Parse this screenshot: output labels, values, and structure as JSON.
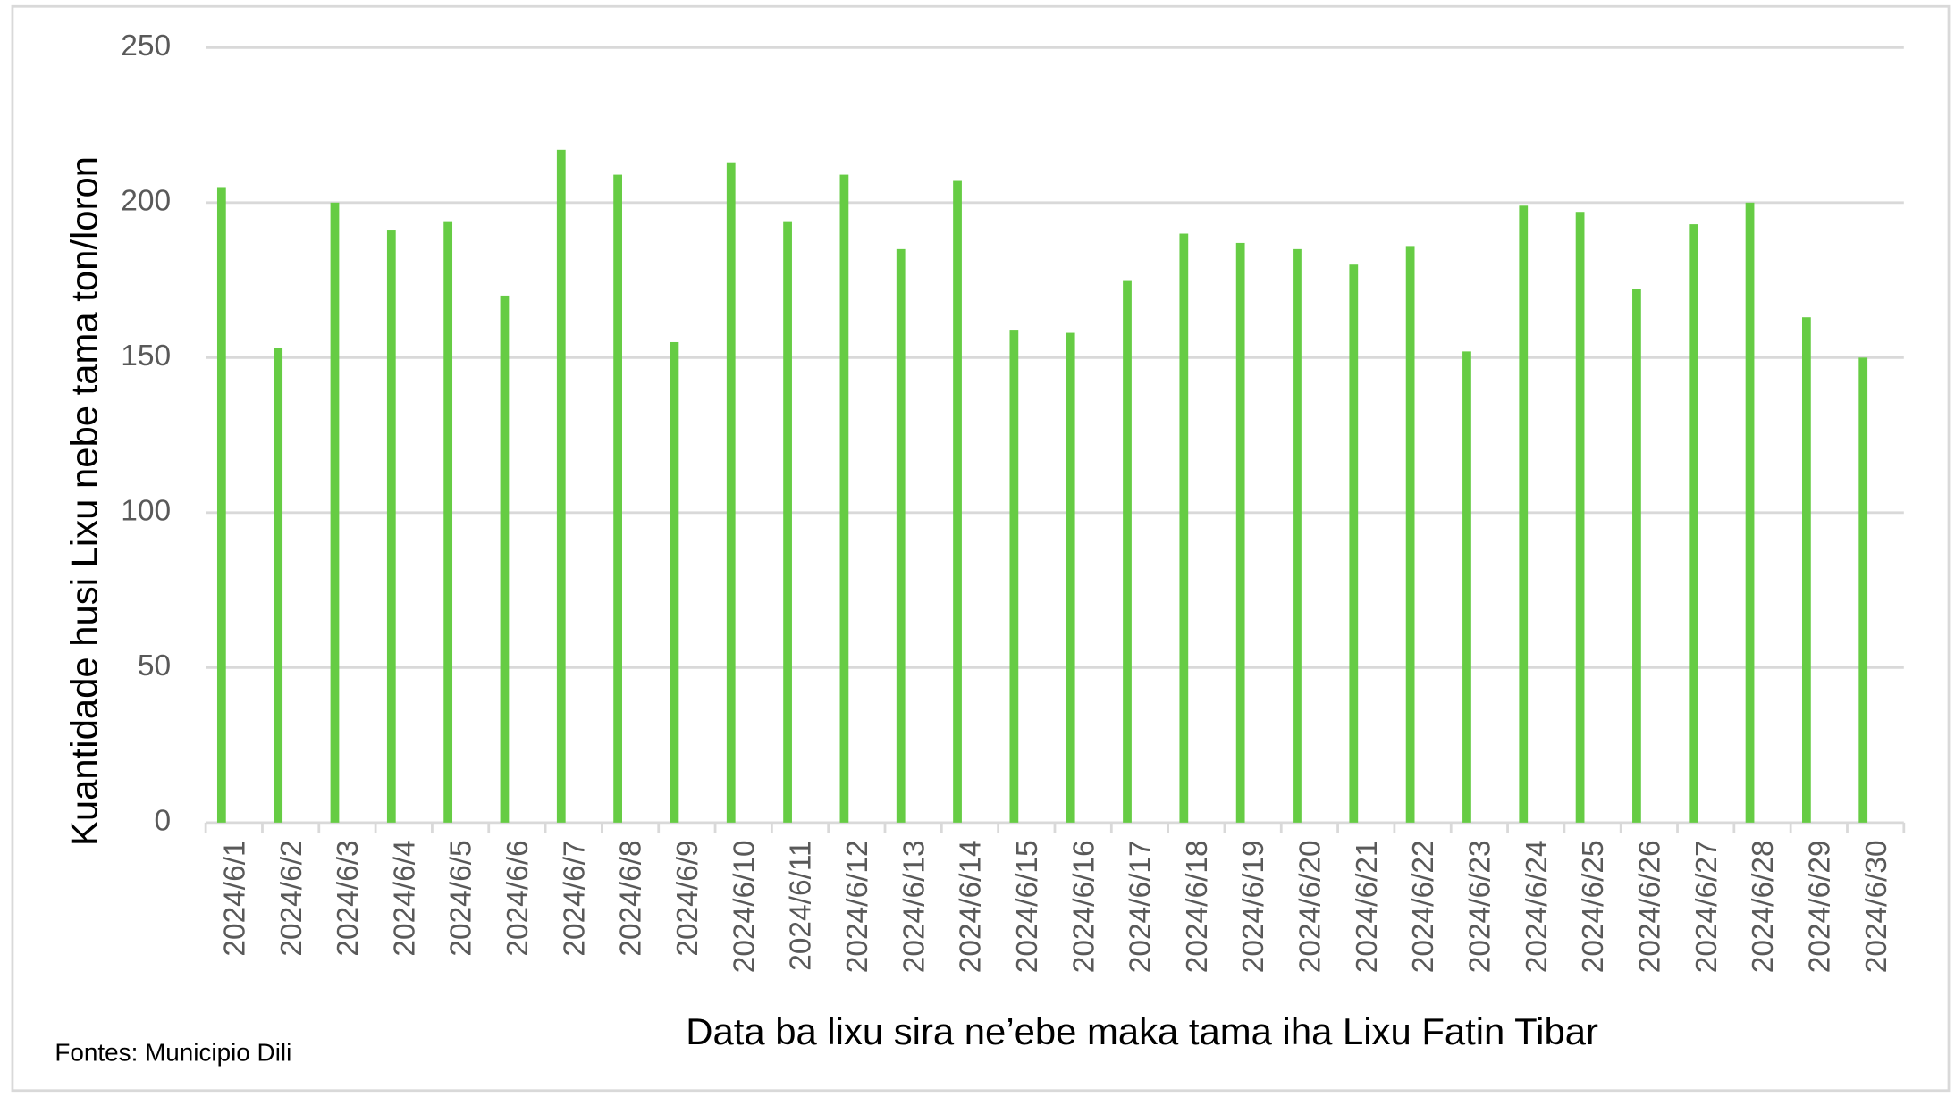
{
  "chart_data": {
    "type": "bar",
    "y_label": "Kuantidade husi Lixu nebe tama ton/loron",
    "x_label": "Data ba lixu sira ne’ebe maka tama iha Lixu Fatin Tibar",
    "source": "Fontes: Municipio Dili",
    "categories": [
      "2024/6/1",
      "2024/6/2",
      "2024/6/3",
      "2024/6/4",
      "2024/6/5",
      "2024/6/6",
      "2024/6/7",
      "2024/6/8",
      "2024/6/9",
      "2024/6/10",
      "2024/6/11",
      "2024/6/12",
      "2024/6/13",
      "2024/6/14",
      "2024/6/15",
      "2024/6/16",
      "2024/6/17",
      "2024/6/18",
      "2024/6/19",
      "2024/6/20",
      "2024/6/21",
      "2024/6/22",
      "2024/6/23",
      "2024/6/24",
      "2024/6/25",
      "2024/6/26",
      "2024/6/27",
      "2024/6/28",
      "2024/6/29",
      "2024/6/30"
    ],
    "values": [
      205,
      153,
      200,
      191,
      194,
      170,
      217,
      209,
      155,
      213,
      194,
      209,
      185,
      207,
      159,
      158,
      175,
      190,
      187,
      185,
      180,
      186,
      152,
      199,
      197,
      172,
      193,
      200,
      163,
      150
    ],
    "color": "#66cc44",
    "ylim": [
      0,
      250
    ],
    "yticks": [
      0,
      50,
      100,
      150,
      200,
      250
    ],
    "grid": true
  }
}
